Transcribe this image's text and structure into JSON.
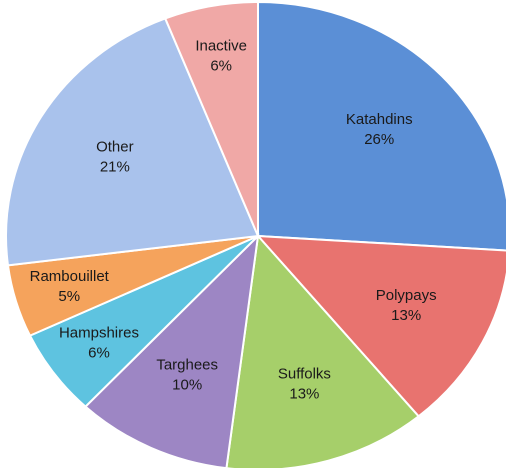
{
  "chart_data": {
    "type": "pie",
    "categories": [
      "Katahdins",
      "Polypays",
      "Suffolks",
      "Targhees",
      "Hampshires",
      "Rambouillet",
      "Other",
      "Inactive"
    ],
    "values": [
      26,
      13,
      13,
      10,
      6,
      5,
      21,
      6
    ],
    "value_labels": [
      "26%",
      "13%",
      "13%",
      "10%",
      "6%",
      "5%",
      "21%",
      "6%"
    ],
    "colors": [
      "#5b8fd6",
      "#e8736f",
      "#a6cf6a",
      "#9d86c4",
      "#5ec3e0",
      "#f5a35c",
      "#a9c2ec",
      "#f0a8a6"
    ]
  }
}
